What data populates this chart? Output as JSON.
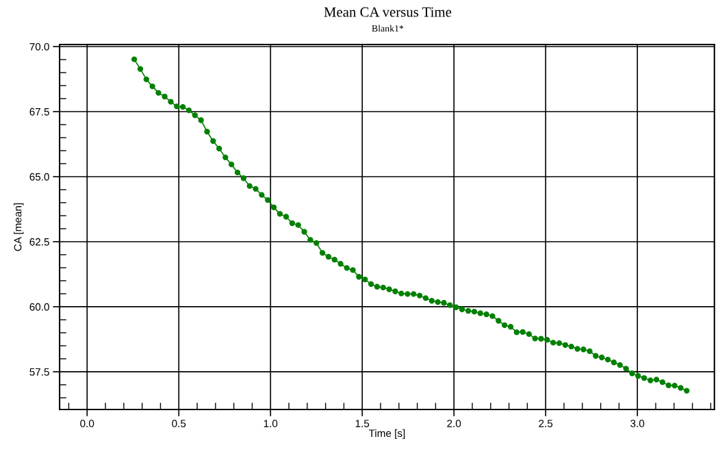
{
  "chart_data": {
    "type": "line",
    "title": "Mean CA versus Time",
    "subtitle": "Blank1*",
    "xlabel": "Time [s]",
    "ylabel": "CA [mean]",
    "x": [
      0.257,
      0.29,
      0.323,
      0.356,
      0.389,
      0.423,
      0.456,
      0.489,
      0.522,
      0.555,
      0.588,
      0.621,
      0.654,
      0.687,
      0.72,
      0.754,
      0.787,
      0.82,
      0.853,
      0.886,
      0.919,
      0.952,
      0.985,
      1.018,
      1.051,
      1.085,
      1.118,
      1.151,
      1.184,
      1.217,
      1.25,
      1.283,
      1.316,
      1.349,
      1.382,
      1.416,
      1.449,
      1.482,
      1.515,
      1.548,
      1.581,
      1.614,
      1.647,
      1.68,
      1.713,
      1.747,
      1.78,
      1.813,
      1.846,
      1.879,
      1.912,
      1.945,
      1.978,
      2.011,
      2.044,
      2.078,
      2.111,
      2.144,
      2.177,
      2.21,
      2.243,
      2.276,
      2.309,
      2.342,
      2.375,
      2.409,
      2.442,
      2.475,
      2.508,
      2.541,
      2.574,
      2.607,
      2.64,
      2.673,
      2.706,
      2.74,
      2.773,
      2.806,
      2.839,
      2.872,
      2.905,
      2.938,
      2.971,
      3.004,
      3.037,
      3.071,
      3.104,
      3.137,
      3.17,
      3.203,
      3.236,
      3.269
    ],
    "series": [
      {
        "color": "#008000",
        "values": [
          69.51,
          69.14,
          68.74,
          68.47,
          68.22,
          68.08,
          67.88,
          67.7,
          67.68,
          67.55,
          67.36,
          67.17,
          66.73,
          66.37,
          66.08,
          65.74,
          65.47,
          65.16,
          64.94,
          64.64,
          64.53,
          64.3,
          64.1,
          63.82,
          63.57,
          63.46,
          63.21,
          63.14,
          62.88,
          62.57,
          62.45,
          62.07,
          61.92,
          61.81,
          61.65,
          61.49,
          61.41,
          61.15,
          61.05,
          60.87,
          60.77,
          60.74,
          60.67,
          60.59,
          60.51,
          60.49,
          60.49,
          60.43,
          60.33,
          60.23,
          60.18,
          60.15,
          60.06,
          59.98,
          59.9,
          59.84,
          59.81,
          59.75,
          59.71,
          59.64,
          59.46,
          59.29,
          59.23,
          59.02,
          59.03,
          58.95,
          58.78,
          58.77,
          58.73,
          58.62,
          58.6,
          58.53,
          58.47,
          58.38,
          58.36,
          58.29,
          58.11,
          58.05,
          57.97,
          57.86,
          57.76,
          57.62,
          57.44,
          57.34,
          57.26,
          57.17,
          57.2,
          57.1,
          56.98,
          56.97,
          56.88,
          56.77
        ]
      }
    ],
    "xlim": [
      -0.15,
      3.42
    ],
    "ylim": [
      56.05,
      70.08
    ],
    "xticks": [
      {
        "value": -0.1,
        "label": null
      },
      {
        "value": 0.0,
        "label": "0.0"
      },
      {
        "value": 0.1,
        "label": null
      },
      {
        "value": 0.2,
        "label": null
      },
      {
        "value": 0.3,
        "label": null
      },
      {
        "value": 0.4,
        "label": null
      },
      {
        "value": 0.5,
        "label": "0.5"
      },
      {
        "value": 0.6,
        "label": null
      },
      {
        "value": 0.7,
        "label": null
      },
      {
        "value": 0.8,
        "label": null
      },
      {
        "value": 0.9,
        "label": null
      },
      {
        "value": 1.0,
        "label": "1.0"
      },
      {
        "value": 1.1,
        "label": null
      },
      {
        "value": 1.2,
        "label": null
      },
      {
        "value": 1.3,
        "label": null
      },
      {
        "value": 1.4,
        "label": null
      },
      {
        "value": 1.5,
        "label": "1.5"
      },
      {
        "value": 1.6,
        "label": null
      },
      {
        "value": 1.7,
        "label": null
      },
      {
        "value": 1.8,
        "label": null
      },
      {
        "value": 1.9,
        "label": null
      },
      {
        "value": 2.0,
        "label": "2.0"
      },
      {
        "value": 2.1,
        "label": null
      },
      {
        "value": 2.2,
        "label": null
      },
      {
        "value": 2.3,
        "label": null
      },
      {
        "value": 2.4,
        "label": null
      },
      {
        "value": 2.5,
        "label": "2.5"
      },
      {
        "value": 2.6,
        "label": null
      },
      {
        "value": 2.7,
        "label": null
      },
      {
        "value": 2.8,
        "label": null
      },
      {
        "value": 2.9,
        "label": null
      },
      {
        "value": 3.0,
        "label": "3.0"
      },
      {
        "value": 3.1,
        "label": null
      },
      {
        "value": 3.2,
        "label": null
      },
      {
        "value": 3.3,
        "label": null
      },
      {
        "value": 3.4,
        "label": null
      }
    ],
    "yticks": [
      {
        "value": 56.5,
        "label": null
      },
      {
        "value": 57.0,
        "label": null
      },
      {
        "value": 57.5,
        "label": "57.5"
      },
      {
        "value": 58.0,
        "label": null
      },
      {
        "value": 58.5,
        "label": null
      },
      {
        "value": 59.0,
        "label": null
      },
      {
        "value": 59.5,
        "label": null
      },
      {
        "value": 60.0,
        "label": "60.0"
      },
      {
        "value": 60.5,
        "label": null
      },
      {
        "value": 61.0,
        "label": null
      },
      {
        "value": 61.5,
        "label": null
      },
      {
        "value": 62.0,
        "label": null
      },
      {
        "value": 62.5,
        "label": "62.5"
      },
      {
        "value": 63.0,
        "label": null
      },
      {
        "value": 63.5,
        "label": null
      },
      {
        "value": 64.0,
        "label": null
      },
      {
        "value": 64.5,
        "label": null
      },
      {
        "value": 65.0,
        "label": "65.0"
      },
      {
        "value": 65.5,
        "label": null
      },
      {
        "value": 66.0,
        "label": null
      },
      {
        "value": 66.5,
        "label": null
      },
      {
        "value": 67.0,
        "label": null
      },
      {
        "value": 67.5,
        "label": "67.5"
      },
      {
        "value": 68.0,
        "label": null
      },
      {
        "value": 68.5,
        "label": null
      },
      {
        "value": 69.0,
        "label": null
      },
      {
        "value": 69.5,
        "label": null
      },
      {
        "value": 70.0,
        "label": "70.0"
      }
    ],
    "grid": true,
    "marker": "circle",
    "line_style": "solid"
  }
}
